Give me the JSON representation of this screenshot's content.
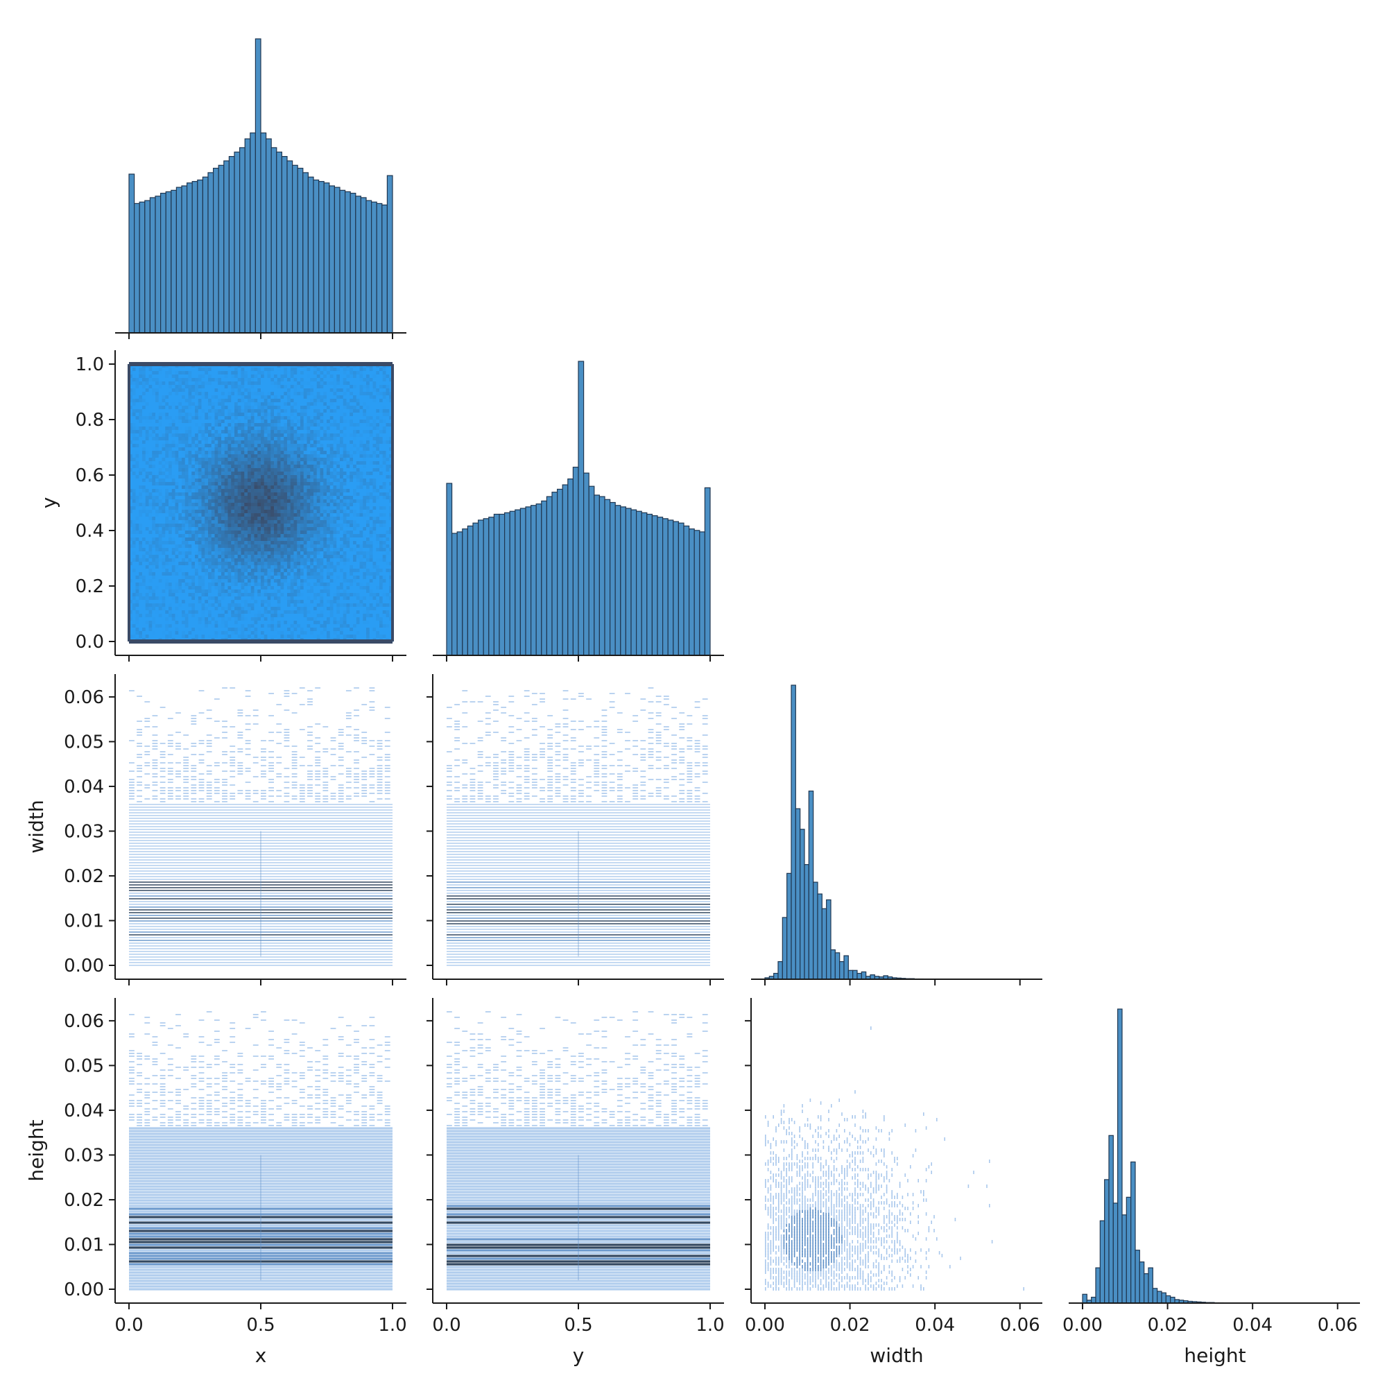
{
  "colors": {
    "hist_fill": "#4a8fc4",
    "hist_edge": "#1f3650",
    "heat_low": "#2a9df4",
    "heat_high": "#3a4a66",
    "light": "#a9c8ec",
    "mid": "#5e90c8",
    "dark": "#1f3650"
  },
  "chart_data": {
    "type": "pairplot",
    "variables": [
      "x",
      "y",
      "width",
      "height"
    ],
    "layout": "corner",
    "ranges": {
      "x": [
        0.0,
        1.0
      ],
      "y": [
        0.0,
        1.0
      ],
      "width": [
        0.0,
        0.062
      ],
      "height": [
        0.0,
        0.062
      ]
    },
    "ticks": {
      "x": [
        "0.0",
        "0.5",
        "1.0"
      ],
      "y": [
        "0.0",
        "0.5",
        "1.0"
      ],
      "width": [
        "0.00",
        "0.02",
        "0.04",
        "0.06"
      ],
      "height": [
        "0.00",
        "0.02",
        "0.04",
        "0.06"
      ]
    },
    "row_ticks": {
      "y": [
        "0.0",
        "0.2",
        "0.4",
        "0.6",
        "0.8",
        "1.0"
      ],
      "width": [
        "0.00",
        "0.01",
        "0.02",
        "0.03",
        "0.04",
        "0.05",
        "0.06"
      ],
      "height": [
        "0.00",
        "0.01",
        "0.02",
        "0.03",
        "0.04",
        "0.05",
        "0.06"
      ]
    },
    "histograms": {
      "x": {
        "bins": 50,
        "range": [
          0.0,
          1.0
        ],
        "counts": [
          0.54,
          0.44,
          0.445,
          0.45,
          0.46,
          0.465,
          0.475,
          0.48,
          0.485,
          0.495,
          0.5,
          0.51,
          0.515,
          0.52,
          0.53,
          0.545,
          0.56,
          0.57,
          0.585,
          0.6,
          0.615,
          0.63,
          0.66,
          0.68,
          1.0,
          0.68,
          0.66,
          0.63,
          0.615,
          0.6,
          0.585,
          0.57,
          0.56,
          0.545,
          0.53,
          0.52,
          0.515,
          0.51,
          0.5,
          0.495,
          0.485,
          0.48,
          0.475,
          0.465,
          0.46,
          0.45,
          0.445,
          0.44,
          0.435,
          0.535
        ]
      },
      "y": {
        "bins": 50,
        "range": [
          0.0,
          1.0
        ],
        "counts": [
          0.585,
          0.415,
          0.42,
          0.43,
          0.44,
          0.45,
          0.46,
          0.465,
          0.47,
          0.48,
          0.48,
          0.485,
          0.49,
          0.495,
          0.5,
          0.505,
          0.51,
          0.515,
          0.525,
          0.54,
          0.555,
          0.565,
          0.58,
          0.6,
          0.64,
          1.0,
          0.62,
          0.575,
          0.545,
          0.54,
          0.53,
          0.52,
          0.51,
          0.505,
          0.5,
          0.495,
          0.49,
          0.485,
          0.48,
          0.475,
          0.47,
          0.465,
          0.46,
          0.455,
          0.45,
          0.44,
          0.43,
          0.425,
          0.42,
          0.57
        ]
      },
      "width": {
        "bins": 60,
        "range": [
          0.0,
          0.062
        ],
        "counts": [
          0.005,
          0.01,
          0.02,
          0.06,
          0.21,
          0.36,
          1.0,
          0.58,
          0.51,
          0.39,
          0.64,
          0.33,
          0.29,
          0.24,
          0.27,
          0.1,
          0.09,
          0.06,
          0.08,
          0.03,
          0.03,
          0.02,
          0.025,
          0.01,
          0.015,
          0.01,
          0.008,
          0.012,
          0.008,
          0.005,
          0.004,
          0.003,
          0.002,
          0.002,
          0.001,
          0.001,
          0,
          0,
          0,
          0,
          0,
          0,
          0,
          0,
          0,
          0,
          0,
          0,
          0,
          0,
          0,
          0,
          0,
          0,
          0,
          0,
          0,
          0,
          0,
          0
        ]
      },
      "height": {
        "bins": 60,
        "range": [
          0.0,
          0.062
        ],
        "counts": [
          0.03,
          0.01,
          0.02,
          0.12,
          0.28,
          0.42,
          0.57,
          0.34,
          1.0,
          0.3,
          0.36,
          0.48,
          0.18,
          0.14,
          0.1,
          0.12,
          0.05,
          0.04,
          0.035,
          0.025,
          0.02,
          0.012,
          0.01,
          0.008,
          0.006,
          0.005,
          0.004,
          0.003,
          0.002,
          0.002,
          0.001,
          0.001,
          0,
          0,
          0,
          0,
          0,
          0,
          0,
          0,
          0,
          0,
          0,
          0,
          0,
          0,
          0,
          0,
          0,
          0,
          0,
          0,
          0,
          0,
          0,
          0,
          0,
          0,
          0,
          0
        ]
      }
    },
    "bivariate": [
      {
        "row": "y",
        "col": "x",
        "kind": "hist2d",
        "center": [
          0.5,
          0.5
        ]
      },
      {
        "row": "width",
        "col": "x",
        "kind": "hist2d_lines"
      },
      {
        "row": "width",
        "col": "y",
        "kind": "hist2d_lines"
      },
      {
        "row": "height",
        "col": "x",
        "kind": "hist2d_lines"
      },
      {
        "row": "height",
        "col": "y",
        "kind": "hist2d_lines"
      },
      {
        "row": "height",
        "col": "width",
        "kind": "hist2d_sparse"
      }
    ]
  }
}
